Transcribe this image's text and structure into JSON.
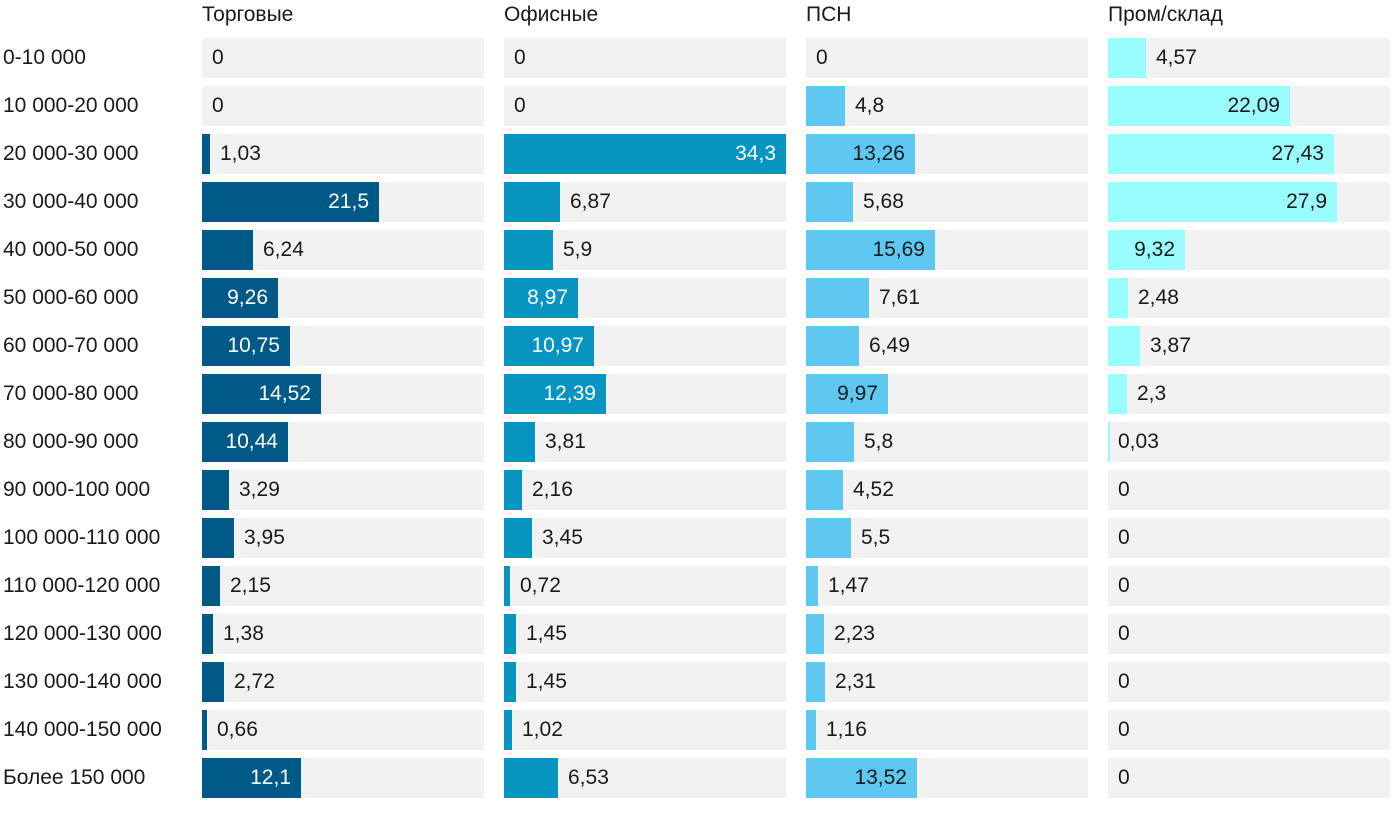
{
  "chart_data": {
    "type": "bar",
    "orientation": "horizontal",
    "layout": "small-multiples",
    "xlim": [
      0,
      34.3
    ],
    "categories": [
      "0-10 000",
      "10 000-20 000",
      "20 000-30 000",
      "30 000-40 000",
      "40 000-50 000",
      "50 000-60 000",
      "60 000-70 000",
      "70 000-80 000",
      "80 000-90 000",
      "90 000-100 000",
      "100 000-110 000",
      "110 000-120 000",
      "120 000-130 000",
      "130 000-140 000",
      "140 000-150 000",
      "Более 150 000"
    ],
    "series": [
      {
        "name": "Торговые",
        "color": "#005a85",
        "label_color_inside": "#ffffff",
        "values": [
          0,
          0,
          1.03,
          21.5,
          6.24,
          9.26,
          10.75,
          14.52,
          10.44,
          3.29,
          3.95,
          2.15,
          1.38,
          2.72,
          0.66,
          12.1
        ],
        "labels": [
          "0",
          "0",
          "1,03",
          "21,5",
          "6,24",
          "9,26",
          "10,75",
          "14,52",
          "10,44",
          "3,29",
          "3,95",
          "2,15",
          "1,38",
          "2,72",
          "0,66",
          "12,1"
        ]
      },
      {
        "name": "Офисные",
        "color": "#0794c0",
        "label_color_inside": "#ffffff",
        "values": [
          0,
          0,
          34.3,
          6.87,
          5.9,
          8.97,
          10.97,
          12.39,
          3.81,
          2.16,
          3.45,
          0.72,
          1.45,
          1.45,
          1.02,
          6.53
        ],
        "labels": [
          "0",
          "0",
          "34,3",
          "6,87",
          "5,9",
          "8,97",
          "10,97",
          "12,39",
          "3,81",
          "2,16",
          "3,45",
          "0,72",
          "1,45",
          "1,45",
          "1,02",
          "6,53"
        ]
      },
      {
        "name": "ПСН",
        "color": "#5ec8f1",
        "label_color_inside": "#1a1a1a",
        "values": [
          0,
          4.8,
          13.26,
          5.68,
          15.69,
          7.61,
          6.49,
          9.97,
          5.8,
          4.52,
          5.5,
          1.47,
          2.23,
          2.31,
          1.16,
          13.52
        ],
        "labels": [
          "0",
          "4,8",
          "13,26",
          "5,68",
          "15,69",
          "7,61",
          "6,49",
          "9,97",
          "5,8",
          "4,52",
          "5,5",
          "1,47",
          "2,23",
          "2,31",
          "1,16",
          "13,52"
        ]
      },
      {
        "name": "Пром/склад",
        "color": "#9bfcfd",
        "label_color_inside": "#1a1a1a",
        "values": [
          4.57,
          22.09,
          27.43,
          27.9,
          9.32,
          2.48,
          3.87,
          2.3,
          0.03,
          0,
          0,
          0,
          0,
          0,
          0,
          0
        ],
        "labels": [
          "4,57",
          "22,09",
          "27,43",
          "27,9",
          "9,32",
          "2,48",
          "3,87",
          "2,3",
          "0,03",
          "0",
          "0",
          "0",
          "0",
          "0",
          "0",
          "0"
        ]
      }
    ]
  }
}
